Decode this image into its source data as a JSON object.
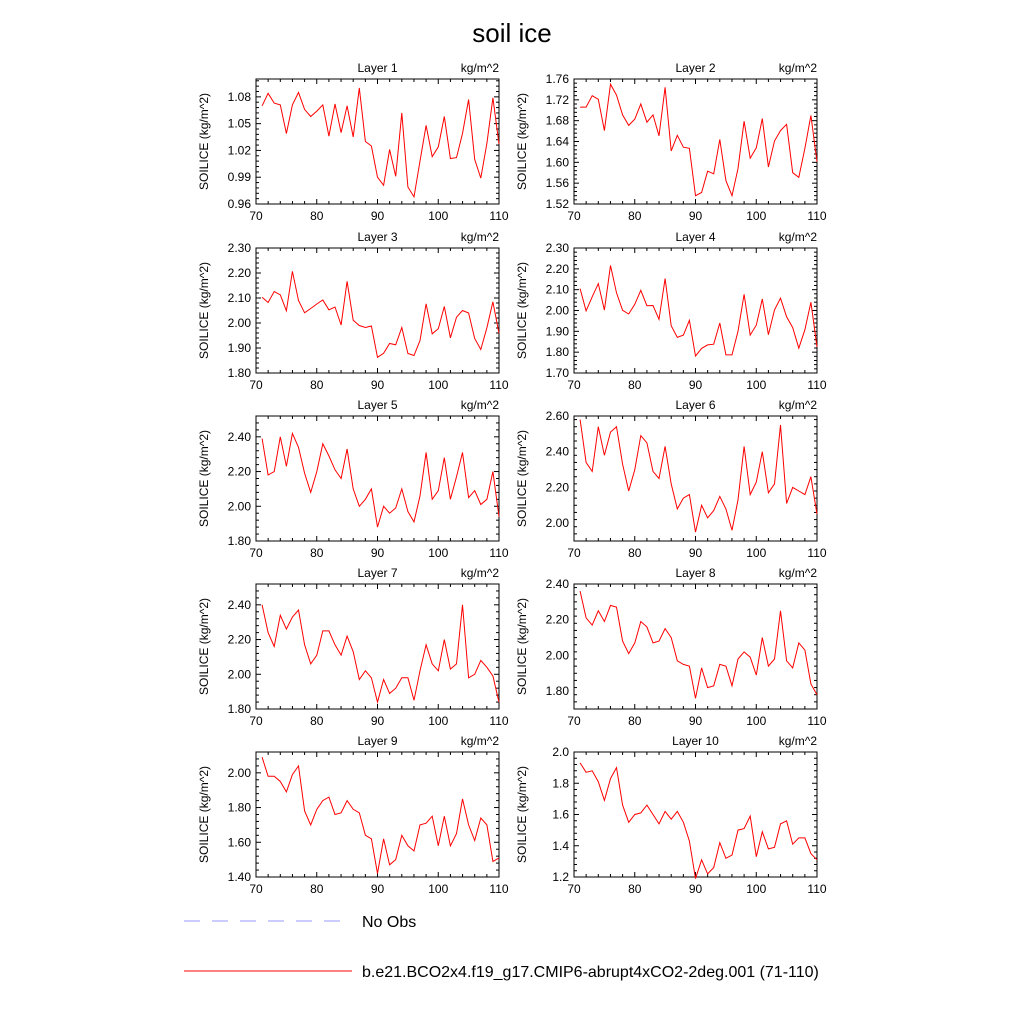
{
  "figure": {
    "title": "soil ice"
  },
  "chart_data": [
    {
      "type": "line",
      "title": "Layer 1",
      "units": "kg/m^2",
      "ylabel": "SOILICE  (kg/m^2)",
      "xlim": [
        70,
        110
      ],
      "ylim": [
        0.96,
        1.1
      ],
      "yticks": [
        "0.96",
        "0.99",
        "1.02",
        "1.05",
        "1.08"
      ],
      "xticks": [
        "70",
        "80",
        "90",
        "100",
        "110"
      ],
      "x": [
        71,
        72,
        73,
        74,
        75,
        76,
        77,
        78,
        79,
        80,
        81,
        82,
        83,
        84,
        85,
        86,
        87,
        88,
        89,
        90,
        91,
        92,
        93,
        94,
        95,
        96,
        97,
        98,
        99,
        100,
        101,
        102,
        103,
        104,
        105,
        106,
        107,
        108,
        109,
        110
      ],
      "series": [
        {
          "name": "b.e21.BCO2x4.f19_g17.CMIP6-abrupt4xCO2-2deg.001 (71-110)",
          "color": "#ff0000",
          "values": [
            1.07,
            1.084,
            1.073,
            1.071,
            1.039,
            1.071,
            1.085,
            1.066,
            1.058,
            1.064,
            1.071,
            1.036,
            1.072,
            1.04,
            1.07,
            1.035,
            1.09,
            1.03,
            1.025,
            0.99,
            0.981,
            1.021,
            0.991,
            1.062,
            0.979,
            0.968,
            1.008,
            1.048,
            1.013,
            1.024,
            1.058,
            1.011,
            1.012,
            1.039,
            1.077,
            1.01,
            0.989,
            1.028,
            1.079,
            1.027
          ]
        }
      ]
    },
    {
      "type": "line",
      "title": "Layer 2",
      "units": "kg/m^2",
      "ylabel": "SOILICE  (kg/m^2)",
      "xlim": [
        70,
        110
      ],
      "ylim": [
        1.52,
        1.76
      ],
      "yticks": [
        "1.52",
        "1.56",
        "1.60",
        "1.64",
        "1.68",
        "1.72",
        "1.76"
      ],
      "xticks": [
        "70",
        "80",
        "90",
        "100",
        "110"
      ],
      "x": [
        71,
        72,
        73,
        74,
        75,
        76,
        77,
        78,
        79,
        80,
        81,
        82,
        83,
        84,
        85,
        86,
        87,
        88,
        89,
        90,
        91,
        92,
        93,
        94,
        95,
        96,
        97,
        98,
        99,
        100,
        101,
        102,
        103,
        104,
        105,
        106,
        107,
        108,
        109,
        110
      ],
      "series": [
        {
          "name": "b.e21.BCO2x4.f19_g17.CMIP6-abrupt4xCO2-2deg.001 (71-110)",
          "color": "#ff0000",
          "values": [
            1.706,
            1.706,
            1.728,
            1.721,
            1.661,
            1.75,
            1.729,
            1.691,
            1.671,
            1.683,
            1.712,
            1.677,
            1.691,
            1.651,
            1.744,
            1.622,
            1.652,
            1.629,
            1.627,
            1.536,
            1.542,
            1.583,
            1.578,
            1.644,
            1.565,
            1.536,
            1.588,
            1.679,
            1.608,
            1.628,
            1.684,
            1.591,
            1.641,
            1.661,
            1.673,
            1.58,
            1.571,
            1.627,
            1.69,
            1.601
          ]
        }
      ]
    },
    {
      "type": "line",
      "title": "Layer 3",
      "units": "kg/m^2",
      "ylabel": "SOILICE  (kg/m^2)",
      "xlim": [
        70,
        110
      ],
      "ylim": [
        1.8,
        2.3
      ],
      "yticks": [
        "1.80",
        "1.90",
        "2.00",
        "2.10",
        "2.20",
        "2.30"
      ],
      "xticks": [
        "70",
        "80",
        "90",
        "100",
        "110"
      ],
      "x": [
        71,
        72,
        73,
        74,
        75,
        76,
        77,
        78,
        79,
        80,
        81,
        82,
        83,
        84,
        85,
        86,
        87,
        88,
        89,
        90,
        91,
        92,
        93,
        94,
        95,
        96,
        97,
        98,
        99,
        100,
        101,
        102,
        103,
        104,
        105,
        106,
        107,
        108,
        109,
        110
      ],
      "series": [
        {
          "name": "b.e21.BCO2x4.f19_g17.CMIP6-abrupt4xCO2-2deg.001 (71-110)",
          "color": "#ff0000",
          "values": [
            2.103,
            2.082,
            2.126,
            2.113,
            2.049,
            2.207,
            2.09,
            2.041,
            2.058,
            2.076,
            2.092,
            2.053,
            2.064,
            1.992,
            2.167,
            2.011,
            1.99,
            1.982,
            1.988,
            1.863,
            1.879,
            1.918,
            1.913,
            1.982,
            1.878,
            1.87,
            1.93,
            2.077,
            1.957,
            1.977,
            2.066,
            1.941,
            2.023,
            2.05,
            2.04,
            1.938,
            1.894,
            1.981,
            2.085,
            1.959
          ]
        }
      ]
    },
    {
      "type": "line",
      "title": "Layer 4",
      "units": "kg/m^2",
      "ylabel": "SOILICE  (kg/m^2)",
      "xlim": [
        70,
        110
      ],
      "ylim": [
        1.7,
        2.3
      ],
      "yticks": [
        "1.70",
        "1.80",
        "1.90",
        "2.00",
        "2.10",
        "2.20",
        "2.30"
      ],
      "xticks": [
        "70",
        "80",
        "90",
        "100",
        "110"
      ],
      "x": [
        71,
        72,
        73,
        74,
        75,
        76,
        77,
        78,
        79,
        80,
        81,
        82,
        83,
        84,
        85,
        86,
        87,
        88,
        89,
        90,
        91,
        92,
        93,
        94,
        95,
        96,
        97,
        98,
        99,
        100,
        101,
        102,
        103,
        104,
        105,
        106,
        107,
        108,
        109,
        110
      ],
      "series": [
        {
          "name": "b.e21.BCO2x4.f19_g17.CMIP6-abrupt4xCO2-2deg.001 (71-110)",
          "color": "#ff0000",
          "values": [
            2.105,
            1.998,
            2.066,
            2.129,
            2.002,
            2.216,
            2.085,
            2.001,
            1.983,
            2.03,
            2.097,
            2.023,
            2.024,
            1.958,
            2.153,
            1.927,
            1.871,
            1.882,
            1.953,
            1.781,
            1.818,
            1.835,
            1.838,
            1.94,
            1.787,
            1.787,
            1.9,
            2.078,
            1.882,
            1.93,
            2.055,
            1.884,
            2.003,
            2.059,
            1.97,
            1.918,
            1.819,
            1.908,
            2.04,
            1.825
          ]
        }
      ]
    },
    {
      "type": "line",
      "title": "Layer 5",
      "units": "kg/m^2",
      "ylabel": "SOILICE  (kg/m^2)",
      "xlim": [
        70,
        110
      ],
      "ylim": [
        1.8,
        2.52
      ],
      "yticks": [
        "1.80",
        "2.00",
        "2.20",
        "2.40"
      ],
      "xticks": [
        "70",
        "80",
        "90",
        "100",
        "110"
      ],
      "x": [
        71,
        72,
        73,
        74,
        75,
        76,
        77,
        78,
        79,
        80,
        81,
        82,
        83,
        84,
        85,
        86,
        87,
        88,
        89,
        90,
        91,
        92,
        93,
        94,
        95,
        96,
        97,
        98,
        99,
        100,
        101,
        102,
        103,
        104,
        105,
        106,
        107,
        108,
        109,
        110
      ],
      "series": [
        {
          "name": "b.e21.BCO2x4.f19_g17.CMIP6-abrupt4xCO2-2deg.001 (71-110)",
          "color": "#ff0000",
          "values": [
            2.39,
            2.18,
            2.2,
            2.4,
            2.23,
            2.42,
            2.34,
            2.19,
            2.08,
            2.2,
            2.36,
            2.29,
            2.21,
            2.16,
            2.33,
            2.1,
            2.0,
            2.04,
            2.1,
            1.88,
            2.0,
            1.96,
            1.99,
            2.1,
            1.97,
            1.91,
            2.06,
            2.31,
            2.04,
            2.09,
            2.28,
            2.04,
            2.17,
            2.31,
            2.05,
            2.09,
            2.01,
            2.04,
            2.2,
            1.94
          ]
        }
      ]
    },
    {
      "type": "line",
      "title": "Layer 6",
      "units": "kg/m^2",
      "ylabel": "SOILICE  (kg/m^2)",
      "xlim": [
        70,
        110
      ],
      "ylim": [
        1.9,
        2.6
      ],
      "yticks": [
        "2.00",
        "2.20",
        "2.40",
        "2.60"
      ],
      "xticks": [
        "70",
        "80",
        "90",
        "100",
        "110"
      ],
      "x": [
        71,
        72,
        73,
        74,
        75,
        76,
        77,
        78,
        79,
        80,
        81,
        82,
        83,
        84,
        85,
        86,
        87,
        88,
        89,
        90,
        91,
        92,
        93,
        94,
        95,
        96,
        97,
        98,
        99,
        100,
        101,
        102,
        103,
        104,
        105,
        106,
        107,
        108,
        109,
        110
      ],
      "series": [
        {
          "name": "b.e21.BCO2x4.f19_g17.CMIP6-abrupt4xCO2-2deg.001 (71-110)",
          "color": "#ff0000",
          "values": [
            2.58,
            2.34,
            2.29,
            2.54,
            2.38,
            2.51,
            2.54,
            2.33,
            2.18,
            2.3,
            2.49,
            2.45,
            2.29,
            2.25,
            2.43,
            2.22,
            2.08,
            2.14,
            2.16,
            1.95,
            2.1,
            2.03,
            2.07,
            2.15,
            2.08,
            1.96,
            2.13,
            2.43,
            2.16,
            2.23,
            2.4,
            2.17,
            2.22,
            2.55,
            2.11,
            2.2,
            2.18,
            2.16,
            2.26,
            2.05
          ]
        }
      ]
    },
    {
      "type": "line",
      "title": "Layer 7",
      "units": "kg/m^2",
      "ylabel": "SOILICE  (kg/m^2)",
      "xlim": [
        70,
        110
      ],
      "ylim": [
        1.8,
        2.52
      ],
      "yticks": [
        "1.80",
        "2.00",
        "2.20",
        "2.40"
      ],
      "xticks": [
        "70",
        "80",
        "90",
        "100",
        "110"
      ],
      "x": [
        71,
        72,
        73,
        74,
        75,
        76,
        77,
        78,
        79,
        80,
        81,
        82,
        83,
        84,
        85,
        86,
        87,
        88,
        89,
        90,
        91,
        92,
        93,
        94,
        95,
        96,
        97,
        98,
        99,
        100,
        101,
        102,
        103,
        104,
        105,
        106,
        107,
        108,
        109,
        110
      ],
      "series": [
        {
          "name": "b.e21.BCO2x4.f19_g17.CMIP6-abrupt4xCO2-2deg.001 (71-110)",
          "color": "#ff0000",
          "values": [
            2.4,
            2.24,
            2.16,
            2.34,
            2.26,
            2.33,
            2.37,
            2.17,
            2.06,
            2.11,
            2.25,
            2.25,
            2.17,
            2.11,
            2.22,
            2.13,
            1.97,
            2.02,
            1.98,
            1.84,
            1.97,
            1.89,
            1.92,
            1.98,
            1.98,
            1.85,
            2.02,
            2.17,
            2.06,
            2.02,
            2.2,
            2.03,
            2.06,
            2.4,
            1.98,
            2.0,
            2.08,
            2.04,
            1.99,
            1.84
          ]
        }
      ]
    },
    {
      "type": "line",
      "title": "Layer 8",
      "units": "kg/m^2",
      "ylabel": "SOILICE  (kg/m^2)",
      "xlim": [
        70,
        110
      ],
      "ylim": [
        1.7,
        2.4
      ],
      "yticks": [
        "1.80",
        "2.00",
        "2.20",
        "2.40"
      ],
      "xticks": [
        "70",
        "80",
        "90",
        "100",
        "110"
      ],
      "x": [
        71,
        72,
        73,
        74,
        75,
        76,
        77,
        78,
        79,
        80,
        81,
        82,
        83,
        84,
        85,
        86,
        87,
        88,
        89,
        90,
        91,
        92,
        93,
        94,
        95,
        96,
        97,
        98,
        99,
        100,
        101,
        102,
        103,
        104,
        105,
        106,
        107,
        108,
        109,
        110
      ],
      "series": [
        {
          "name": "b.e21.BCO2x4.f19_g17.CMIP6-abrupt4xCO2-2deg.001 (71-110)",
          "color": "#ff0000",
          "values": [
            2.36,
            2.21,
            2.17,
            2.25,
            2.19,
            2.28,
            2.27,
            2.08,
            2.01,
            2.07,
            2.19,
            2.16,
            2.07,
            2.08,
            2.15,
            2.1,
            1.97,
            1.95,
            1.94,
            1.76,
            1.93,
            1.82,
            1.83,
            1.95,
            1.94,
            1.83,
            1.98,
            2.02,
            1.99,
            1.89,
            2.1,
            1.94,
            1.98,
            2.25,
            1.97,
            1.93,
            2.07,
            2.03,
            1.84,
            1.78
          ]
        }
      ]
    },
    {
      "type": "line",
      "title": "Layer 9",
      "units": "kg/m^2",
      "ylabel": "SOILICE  (kg/m^2)",
      "xlim": [
        70,
        110
      ],
      "ylim": [
        1.4,
        2.12
      ],
      "yticks": [
        "1.40",
        "1.60",
        "1.80",
        "2.00"
      ],
      "xticks": [
        "70",
        "80",
        "90",
        "100",
        "110"
      ],
      "x": [
        71,
        72,
        73,
        74,
        75,
        76,
        77,
        78,
        79,
        80,
        81,
        82,
        83,
        84,
        85,
        86,
        87,
        88,
        89,
        90,
        91,
        92,
        93,
        94,
        95,
        96,
        97,
        98,
        99,
        100,
        101,
        102,
        103,
        104,
        105,
        106,
        107,
        108,
        109,
        110
      ],
      "series": [
        {
          "name": "b.e21.BCO2x4.f19_g17.CMIP6-abrupt4xCO2-2deg.001 (71-110)",
          "color": "#ff0000",
          "values": [
            2.09,
            1.98,
            1.98,
            1.95,
            1.89,
            1.99,
            2.04,
            1.78,
            1.7,
            1.79,
            1.84,
            1.86,
            1.76,
            1.77,
            1.84,
            1.79,
            1.77,
            1.64,
            1.62,
            1.42,
            1.62,
            1.47,
            1.5,
            1.64,
            1.58,
            1.55,
            1.7,
            1.71,
            1.75,
            1.58,
            1.75,
            1.58,
            1.65,
            1.85,
            1.7,
            1.61,
            1.74,
            1.7,
            1.49,
            1.51
          ]
        }
      ]
    },
    {
      "type": "line",
      "title": "Layer 10",
      "units": "kg/m^2",
      "ylabel": "SOILICE  (kg/m^2)",
      "xlim": [
        70,
        110
      ],
      "ylim": [
        1.2,
        2.0
      ],
      "yticks": [
        "1.2",
        "1.4",
        "1.6",
        "1.8",
        "2.0"
      ],
      "xticks": [
        "70",
        "80",
        "90",
        "100",
        "110"
      ],
      "x": [
        71,
        72,
        73,
        74,
        75,
        76,
        77,
        78,
        79,
        80,
        81,
        82,
        83,
        84,
        85,
        86,
        87,
        88,
        89,
        90,
        91,
        92,
        93,
        94,
        95,
        96,
        97,
        98,
        99,
        100,
        101,
        102,
        103,
        104,
        105,
        106,
        107,
        108,
        109,
        110
      ],
      "series": [
        {
          "name": "b.e21.BCO2x4.f19_g17.CMIP6-abrupt4xCO2-2deg.001 (71-110)",
          "color": "#ff0000",
          "values": [
            1.93,
            1.87,
            1.88,
            1.81,
            1.69,
            1.83,
            1.9,
            1.66,
            1.55,
            1.6,
            1.61,
            1.66,
            1.6,
            1.54,
            1.62,
            1.57,
            1.62,
            1.55,
            1.43,
            1.19,
            1.31,
            1.22,
            1.26,
            1.42,
            1.32,
            1.34,
            1.5,
            1.51,
            1.59,
            1.33,
            1.49,
            1.38,
            1.39,
            1.54,
            1.56,
            1.41,
            1.45,
            1.45,
            1.35,
            1.31
          ]
        }
      ]
    }
  ],
  "legend": {
    "entries": [
      {
        "label": "No Obs",
        "color": "#9999ff",
        "style": "dashed"
      },
      {
        "label": "b.e21.BCO2x4.f19_g17.CMIP6-abrupt4xCO2-2deg.001 (71-110)",
        "color": "#ff0000",
        "style": "solid"
      }
    ]
  }
}
